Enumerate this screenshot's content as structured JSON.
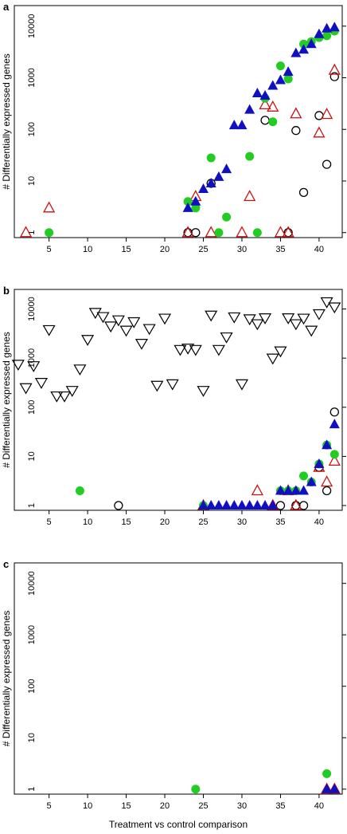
{
  "colors": {
    "open_circle": "#000000",
    "open_triangle_red": "#cc1111",
    "filled_circle_green": "#22cc22",
    "filled_triangle_blue": "#1010c0",
    "open_triangle_down": "#000000"
  },
  "chart_data": [
    {
      "type": "scatter",
      "panel_label": "a",
      "ylabel": "# Differentially expressed genes",
      "xlabel": "",
      "yscale": "log",
      "xlim": [
        0.5,
        43
      ],
      "ylim": [
        0.8,
        25000
      ],
      "x_ticks": [
        5,
        10,
        15,
        20,
        25,
        30,
        35,
        40
      ],
      "y_ticks": [
        1,
        10,
        100,
        1000,
        10000
      ],
      "series": [
        {
          "marker": "open-circle",
          "color": "#000000",
          "x": [
            23,
            24,
            26,
            33,
            36,
            37,
            38,
            40,
            41,
            42
          ],
          "y": [
            1,
            1,
            9,
            150,
            1,
            95,
            6,
            185,
            21,
            1050
          ]
        },
        {
          "marker": "open-triangle",
          "color": "#cc1111",
          "x": [
            2,
            5,
            23,
            24,
            26,
            30,
            31,
            33,
            34,
            35,
            36,
            37,
            40,
            41,
            42
          ],
          "y": [
            1,
            3,
            1,
            5,
            1,
            1,
            5,
            300,
            270,
            1,
            1,
            200,
            85,
            195,
            1400
          ]
        },
        {
          "marker": "filled-circle",
          "color": "#22cc22",
          "x": [
            5,
            23,
            24,
            26,
            27,
            28,
            31,
            32,
            33,
            34,
            35,
            36,
            38,
            39,
            40,
            41,
            42
          ],
          "y": [
            1,
            4,
            3,
            28,
            1,
            2,
            30,
            1,
            400,
            140,
            1700,
            950,
            4500,
            5000,
            6000,
            6500,
            8000
          ]
        },
        {
          "marker": "filled-triangle",
          "color": "#1010c0",
          "x": [
            23,
            24,
            25,
            26,
            27,
            28,
            29,
            30,
            31,
            32,
            33,
            34,
            35,
            36,
            37,
            38,
            39,
            40,
            41,
            42
          ],
          "y": [
            3,
            4,
            7,
            9,
            12,
            17,
            120,
            120,
            240,
            500,
            450,
            700,
            900,
            1300,
            3000,
            3500,
            4500,
            7000,
            9000,
            9500
          ]
        }
      ]
    },
    {
      "type": "scatter",
      "panel_label": "b",
      "ylabel": "# Differentially expressed genes",
      "xlabel": "",
      "yscale": "log",
      "xlim": [
        0.5,
        43
      ],
      "ylim": [
        0.8,
        25000
      ],
      "x_ticks": [
        5,
        10,
        15,
        20,
        25,
        30,
        35,
        40
      ],
      "y_ticks": [
        1,
        10,
        100,
        1000,
        10000
      ],
      "series": [
        {
          "marker": "open-triangle-down",
          "color": "#000000",
          "x": [
            1,
            2,
            3,
            4,
            5,
            6,
            7,
            8,
            9,
            10,
            11,
            12,
            13,
            14,
            15,
            16,
            17,
            18,
            19,
            20,
            21,
            22,
            23,
            24,
            25,
            26,
            27,
            28,
            29,
            30,
            31,
            32,
            33,
            34,
            35,
            36,
            37,
            38,
            39,
            40,
            41,
            42
          ],
          "y": [
            750,
            250,
            700,
            320,
            3800,
            170,
            170,
            220,
            600,
            2400,
            8500,
            7000,
            4500,
            6000,
            3700,
            5500,
            2000,
            4000,
            280,
            6500,
            300,
            1500,
            1600,
            1500,
            220,
            7500,
            1500,
            2700,
            6900,
            300,
            6300,
            5000,
            6600,
            1000,
            1400,
            6600,
            5000,
            6500,
            3700,
            8000,
            14000,
            11000
          ]
        },
        {
          "marker": "open-circle",
          "color": "#000000",
          "x": [
            14,
            35,
            37,
            38,
            40,
            41,
            42
          ],
          "y": [
            1,
            1,
            1,
            1,
            6,
            2,
            80
          ]
        },
        {
          "marker": "open-triangle",
          "color": "#cc1111",
          "x": [
            25,
            32,
            34,
            36,
            37,
            40,
            41,
            42
          ],
          "y": [
            1,
            2,
            1,
            2,
            1,
            6,
            3,
            8
          ]
        },
        {
          "marker": "filled-circle",
          "color": "#22cc22",
          "x": [
            9,
            25,
            35,
            36,
            37,
            38,
            39,
            40,
            41,
            42
          ],
          "y": [
            2,
            1,
            2,
            2,
            2,
            4,
            3,
            7,
            17,
            11
          ]
        },
        {
          "marker": "filled-triangle",
          "color": "#1010c0",
          "x": [
            25,
            26,
            27,
            28,
            29,
            30,
            31,
            32,
            33,
            34,
            35,
            36,
            37,
            38,
            39,
            40,
            41,
            42
          ],
          "y": [
            1,
            1,
            1,
            1,
            1,
            1,
            1,
            1,
            1,
            1,
            2,
            2,
            2,
            2,
            3,
            7,
            17,
            45
          ]
        }
      ]
    },
    {
      "type": "scatter",
      "panel_label": "c",
      "ylabel": "# Differentially expressed genes",
      "xlabel": "Treatment vs control comparison",
      "yscale": "log",
      "xlim": [
        0.5,
        43
      ],
      "ylim": [
        0.8,
        25000
      ],
      "x_ticks": [
        5,
        10,
        15,
        20,
        25,
        30,
        35,
        40
      ],
      "y_ticks": [
        1,
        10,
        100,
        1000,
        10000
      ],
      "series": [
        {
          "marker": "filled-circle",
          "color": "#22cc22",
          "x": [
            24,
            41
          ],
          "y": [
            1,
            2
          ]
        },
        {
          "marker": "open-triangle",
          "color": "#cc1111",
          "x": [
            41,
            42
          ],
          "y": [
            1,
            1
          ]
        },
        {
          "marker": "filled-triangle",
          "color": "#1010c0",
          "x": [
            41,
            42
          ],
          "y": [
            1,
            1
          ]
        }
      ]
    }
  ]
}
